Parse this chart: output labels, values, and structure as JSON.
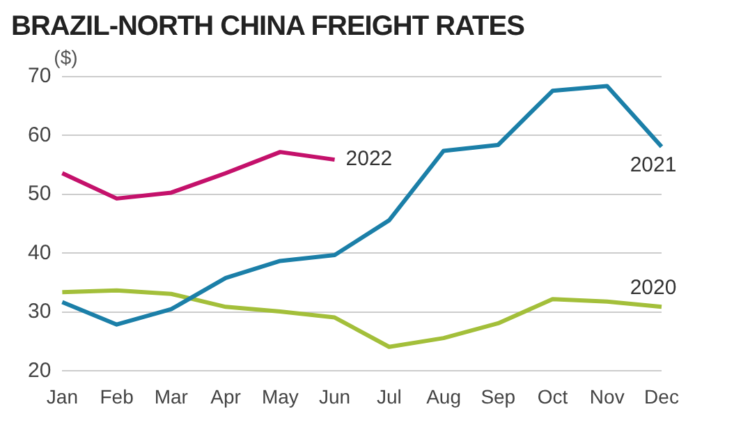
{
  "chart_data": {
    "type": "line",
    "title": "BRAZIL-NORTH CHINA FREIGHT RATES",
    "ylabel": "($)",
    "categories": [
      "Jan",
      "Feb",
      "Mar",
      "Apr",
      "May",
      "Jun",
      "Jul",
      "Aug",
      "Sep",
      "Oct",
      "Nov",
      "Dec"
    ],
    "series": [
      {
        "name": "2022",
        "color": "#c4116b",
        "values": [
          53.6,
          49.3,
          50.3,
          53.6,
          57.2,
          55.9,
          null,
          null,
          null,
          null,
          null,
          null
        ]
      },
      {
        "name": "2021",
        "color": "#1b7fa8",
        "values": [
          31.7,
          27.9,
          30.5,
          35.8,
          38.7,
          39.7,
          45.6,
          57.4,
          58.4,
          67.6,
          68.4,
          58.1
        ]
      },
      {
        "name": "2020",
        "color": "#a3bf3a",
        "values": [
          33.4,
          33.7,
          33.1,
          30.9,
          30.1,
          29.1,
          24.1,
          25.6,
          28.1,
          32.2,
          31.8,
          30.9
        ]
      }
    ],
    "ylim": [
      20,
      70
    ],
    "yticks": [
      20,
      30,
      40,
      50,
      60,
      70
    ],
    "grid": "y",
    "legend": false,
    "marker": "none",
    "line_style": "solid"
  }
}
